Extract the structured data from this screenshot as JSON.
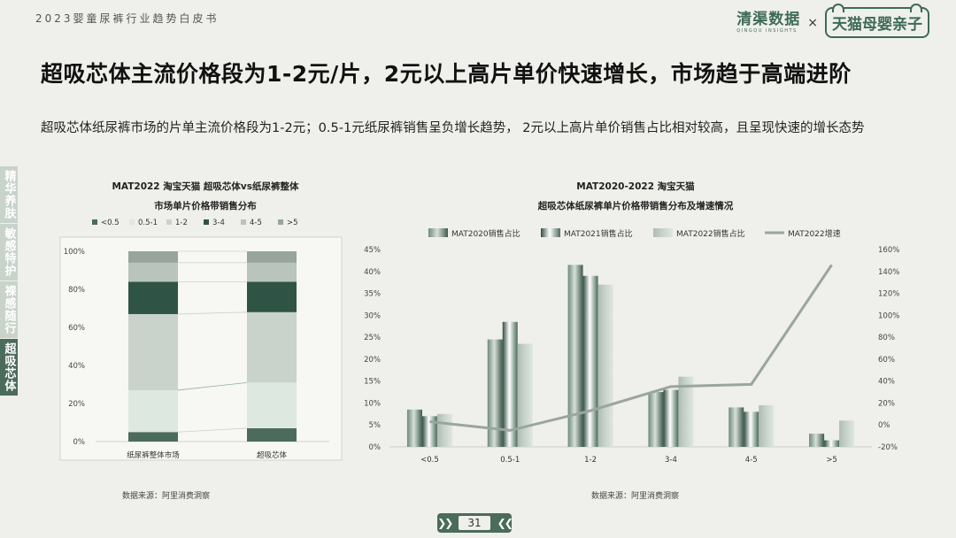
{
  "header": {
    "report_title": "2023婴童尿裤行业趋势白皮书",
    "logo_left_cn": "清渠数据",
    "logo_left_en": "QINGQU INSIGHTS",
    "logo_times": "×",
    "logo_right": "天猫母婴亲子"
  },
  "headline": "超吸芯体主流价格段为1-2元/片，2元以上高片单价快速增长，市场趋于高端进阶",
  "description": "超吸芯体纸尿裤市场的片单主流价格段为1-2元；0.5-1元纸尿裤销售呈负增长趋势， 2元以上高片单价销售占比相对较高，且呈现快速的增长态势",
  "side_tabs": [
    {
      "label": "精华养肤",
      "active": false
    },
    {
      "label": "敏感特护",
      "active": false
    },
    {
      "label": "裸感随行",
      "active": false
    },
    {
      "label": "超吸芯体",
      "active": true
    }
  ],
  "colors": {
    "c1": "#4d6b5d",
    "c2": "#dde8e1",
    "c3": "#c9d3cc",
    "c4": "#2f5446",
    "c5": "#b8c4bc",
    "c6": "#97a59c",
    "line": "#9aa59f"
  },
  "chart_data": [
    {
      "type": "bar",
      "stacked": true,
      "title": "MAT2022 淘宝天猫 超吸芯体vs纸尿裤整体",
      "subtitle": "市场单片价格带销售分布",
      "categories": [
        "纸尿裤整体市场",
        "超吸芯体"
      ],
      "series": [
        {
          "name": "<0.5",
          "values": [
            5,
            7
          ]
        },
        {
          "name": "0.5-1",
          "values": [
            22,
            24
          ]
        },
        {
          "name": "1-2",
          "values": [
            40,
            37
          ]
        },
        {
          "name": "3-4",
          "values": [
            17,
            16
          ]
        },
        {
          "name": "4-5",
          "values": [
            10,
            10
          ]
        },
        {
          "name": ">5",
          "values": [
            6,
            6
          ]
        }
      ],
      "ylim": [
        0,
        100
      ],
      "yticks": [
        "0%",
        "20%",
        "40%",
        "60%",
        "80%",
        "100%"
      ],
      "legend": "top"
    },
    {
      "type": "bar",
      "title": "MAT2020-2022 淘宝天猫",
      "subtitle": "超吸芯体纸尿裤单片价格带销售分布及增速情况",
      "categories": [
        "<0.5",
        "0.5-1",
        "1-2",
        "3-4",
        "4-5",
        ">5"
      ],
      "series": [
        {
          "name": "MAT2020销售占比",
          "values": [
            8.5,
            24.5,
            41.5,
            12.5,
            9,
            3
          ]
        },
        {
          "name": "MAT2021销售占比",
          "values": [
            7,
            28.5,
            39,
            13,
            8,
            1.5
          ]
        },
        {
          "name": "MAT2022销售占比",
          "values": [
            7.5,
            23.5,
            37,
            16,
            9.5,
            6
          ]
        }
      ],
      "line_series": {
        "name": "MAT2022增速",
        "values": [
          3,
          -5,
          13,
          35,
          37,
          146
        ]
      },
      "ylim": [
        0,
        45
      ],
      "yticks": [
        "0%",
        "5%",
        "10%",
        "15%",
        "20%",
        "25%",
        "30%",
        "35%",
        "40%",
        "45%"
      ],
      "y2lim": [
        -20,
        160
      ],
      "y2ticks": [
        "-20%",
        "0%",
        "20%",
        "40%",
        "60%",
        "80%",
        "100%",
        "120%",
        "140%",
        "160%"
      ],
      "legend": "top"
    }
  ],
  "source_left": "数据来源：阿里消费洞察",
  "source_right": "数据来源：阿里消费洞察",
  "pager": {
    "number": "31"
  }
}
